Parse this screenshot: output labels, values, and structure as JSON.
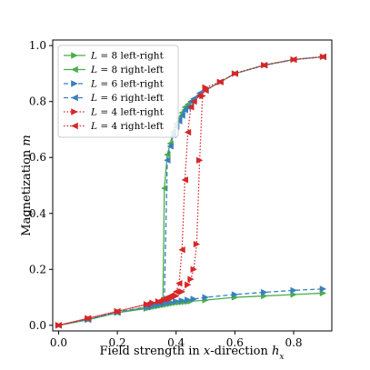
{
  "chart_data": {
    "type": "line",
    "xlabel": "Field strength in x-direction h_x",
    "ylabel": "Magnetization m",
    "xlim": [
      -0.02,
      0.93
    ],
    "ylim": [
      -0.02,
      1.02
    ],
    "x_ticks": [
      0.0,
      0.2,
      0.4,
      0.6,
      0.8
    ],
    "y_ticks": [
      0.0,
      0.2,
      0.4,
      0.6,
      0.8,
      1.0
    ],
    "x_tick_labels": [
      "0.0",
      "0.2",
      "0.4",
      "0.6",
      "0.8"
    ],
    "y_tick_labels": [
      "0.0",
      "0.2",
      "0.4",
      "0.6",
      "0.8",
      "1.0"
    ],
    "grid": false,
    "legend_position": "top-left",
    "series": [
      {
        "name": "L = 8 left-right",
        "color": "#4aae4a",
        "dash": "solid",
        "marker": "right-triangle",
        "x": [
          0.0,
          0.1,
          0.2,
          0.3,
          0.31,
          0.32,
          0.33,
          0.34,
          0.35,
          0.36,
          0.37,
          0.38,
          0.39,
          0.4,
          0.41,
          0.42,
          0.43,
          0.44,
          0.45,
          0.5,
          0.6,
          0.7,
          0.8,
          0.9
        ],
        "y": [
          0.0,
          0.02,
          0.045,
          0.06,
          0.063,
          0.065,
          0.067,
          0.069,
          0.071,
          0.073,
          0.075,
          0.077,
          0.079,
          0.081,
          0.082,
          0.083,
          0.084,
          0.085,
          0.086,
          0.09,
          0.1,
          0.105,
          0.11,
          0.115
        ]
      },
      {
        "name": "L = 8 right-left",
        "color": "#4aae4a",
        "dash": "solid",
        "marker": "left-triangle",
        "x": [
          0.9,
          0.8,
          0.7,
          0.6,
          0.55,
          0.5,
          0.48,
          0.46,
          0.45,
          0.44,
          0.43,
          0.42,
          0.41,
          0.4,
          0.39,
          0.38,
          0.37,
          0.36,
          0.355,
          0.35,
          0.34,
          0.3,
          0.2,
          0.1,
          0.0
        ],
        "y": [
          0.96,
          0.95,
          0.93,
          0.9,
          0.87,
          0.84,
          0.82,
          0.81,
          0.8,
          0.79,
          0.78,
          0.76,
          0.74,
          0.72,
          0.69,
          0.65,
          0.61,
          0.49,
          0.08,
          0.078,
          0.075,
          0.065,
          0.045,
          0.02,
          0.0
        ]
      },
      {
        "name": "L = 6 left-right",
        "color": "#3a7fc0",
        "dash": "dashed",
        "marker": "right-triangle",
        "x": [
          0.0,
          0.1,
          0.2,
          0.3,
          0.32,
          0.34,
          0.36,
          0.38,
          0.4,
          0.42,
          0.44,
          0.46,
          0.5,
          0.6,
          0.7,
          0.8,
          0.9
        ],
        "y": [
          0.0,
          0.022,
          0.047,
          0.065,
          0.069,
          0.073,
          0.077,
          0.081,
          0.085,
          0.088,
          0.091,
          0.094,
          0.1,
          0.11,
          0.118,
          0.125,
          0.13
        ]
      },
      {
        "name": "L = 6 right-left",
        "color": "#3a7fc0",
        "dash": "dashed",
        "marker": "left-triangle",
        "x": [
          0.9,
          0.8,
          0.7,
          0.6,
          0.55,
          0.5,
          0.48,
          0.46,
          0.45,
          0.44,
          0.43,
          0.42,
          0.41,
          0.4,
          0.39,
          0.38,
          0.37,
          0.36,
          0.34,
          0.3,
          0.2,
          0.1,
          0.0
        ],
        "y": [
          0.96,
          0.95,
          0.93,
          0.9,
          0.87,
          0.84,
          0.83,
          0.81,
          0.8,
          0.78,
          0.77,
          0.75,
          0.73,
          0.71,
          0.68,
          0.64,
          0.59,
          0.09,
          0.08,
          0.066,
          0.046,
          0.021,
          0.0
        ]
      },
      {
        "name": "L = 4 left-right",
        "color": "#d62728",
        "dash": "dotted",
        "marker": "right-triangle",
        "x": [
          0.0,
          0.1,
          0.2,
          0.3,
          0.32,
          0.34,
          0.36,
          0.38,
          0.4,
          0.42,
          0.44,
          0.45,
          0.46,
          0.47,
          0.48,
          0.49,
          0.5,
          0.55,
          0.6,
          0.7,
          0.8,
          0.9
        ],
        "y": [
          0.0,
          0.025,
          0.05,
          0.075,
          0.08,
          0.085,
          0.09,
          0.095,
          0.105,
          0.12,
          0.145,
          0.165,
          0.2,
          0.29,
          0.59,
          0.82,
          0.85,
          0.87,
          0.9,
          0.93,
          0.95,
          0.96
        ]
      },
      {
        "name": "L = 4 right-left",
        "color": "#d62728",
        "dash": "dotted",
        "marker": "left-triangle",
        "x": [
          0.9,
          0.8,
          0.7,
          0.6,
          0.55,
          0.5,
          0.48,
          0.46,
          0.45,
          0.44,
          0.43,
          0.42,
          0.41,
          0.4,
          0.38,
          0.36,
          0.34,
          0.3,
          0.2,
          0.1,
          0.0
        ],
        "y": [
          0.96,
          0.95,
          0.93,
          0.9,
          0.87,
          0.84,
          0.82,
          0.8,
          0.78,
          0.69,
          0.52,
          0.27,
          0.15,
          0.12,
          0.105,
          0.095,
          0.085,
          0.075,
          0.05,
          0.025,
          0.0
        ]
      }
    ]
  }
}
